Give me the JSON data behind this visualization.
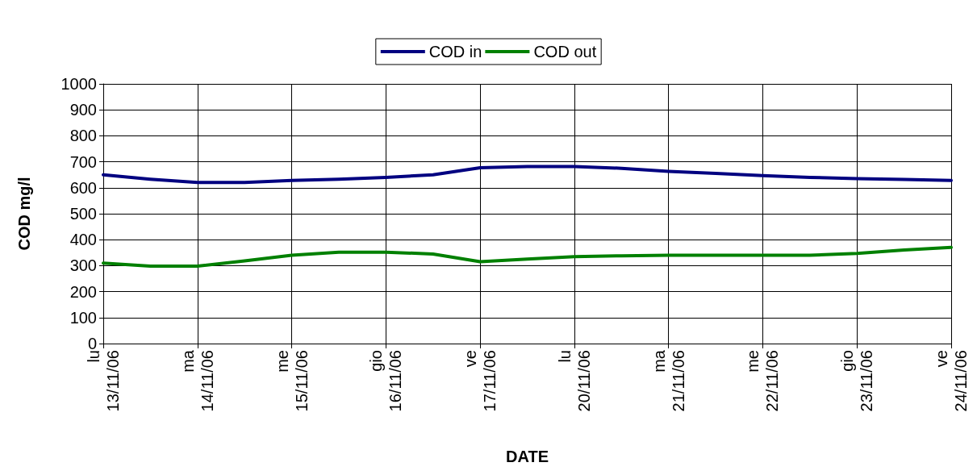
{
  "chart_data": {
    "type": "line",
    "xlabel": "DATE",
    "ylabel": "COD mg/l",
    "categories": [
      "lu\n13/11/06",
      null,
      "ma\n14/11/06",
      null,
      "me\n15/11/06",
      null,
      "gio\n16/11/06",
      null,
      "ve\n17/11/06",
      null,
      "lu\n20/11/06",
      null,
      "ma\n21/11/06",
      null,
      "me\n22/11/06",
      null,
      "gio\n23/11/06",
      null,
      "ve\n24/11/06"
    ],
    "series": [
      {
        "name": "COD in",
        "color": "#000080",
        "values": [
          650,
          633,
          620,
          620,
          628,
          633,
          640,
          650,
          677,
          682,
          682,
          675,
          663,
          655,
          647,
          640,
          635,
          632,
          628
        ]
      },
      {
        "name": "COD out",
        "color": "#008000",
        "values": [
          310,
          298,
          298,
          318,
          340,
          352,
          352,
          345,
          315,
          325,
          335,
          338,
          340,
          340,
          340,
          340,
          347,
          360,
          370
        ]
      }
    ],
    "ylim": [
      0,
      1000
    ],
    "yticks": [
      0,
      100,
      200,
      300,
      400,
      500,
      600,
      700,
      800,
      900,
      1000
    ],
    "grid": true,
    "legend": "top",
    "marker": "none",
    "line_style": "solid"
  }
}
